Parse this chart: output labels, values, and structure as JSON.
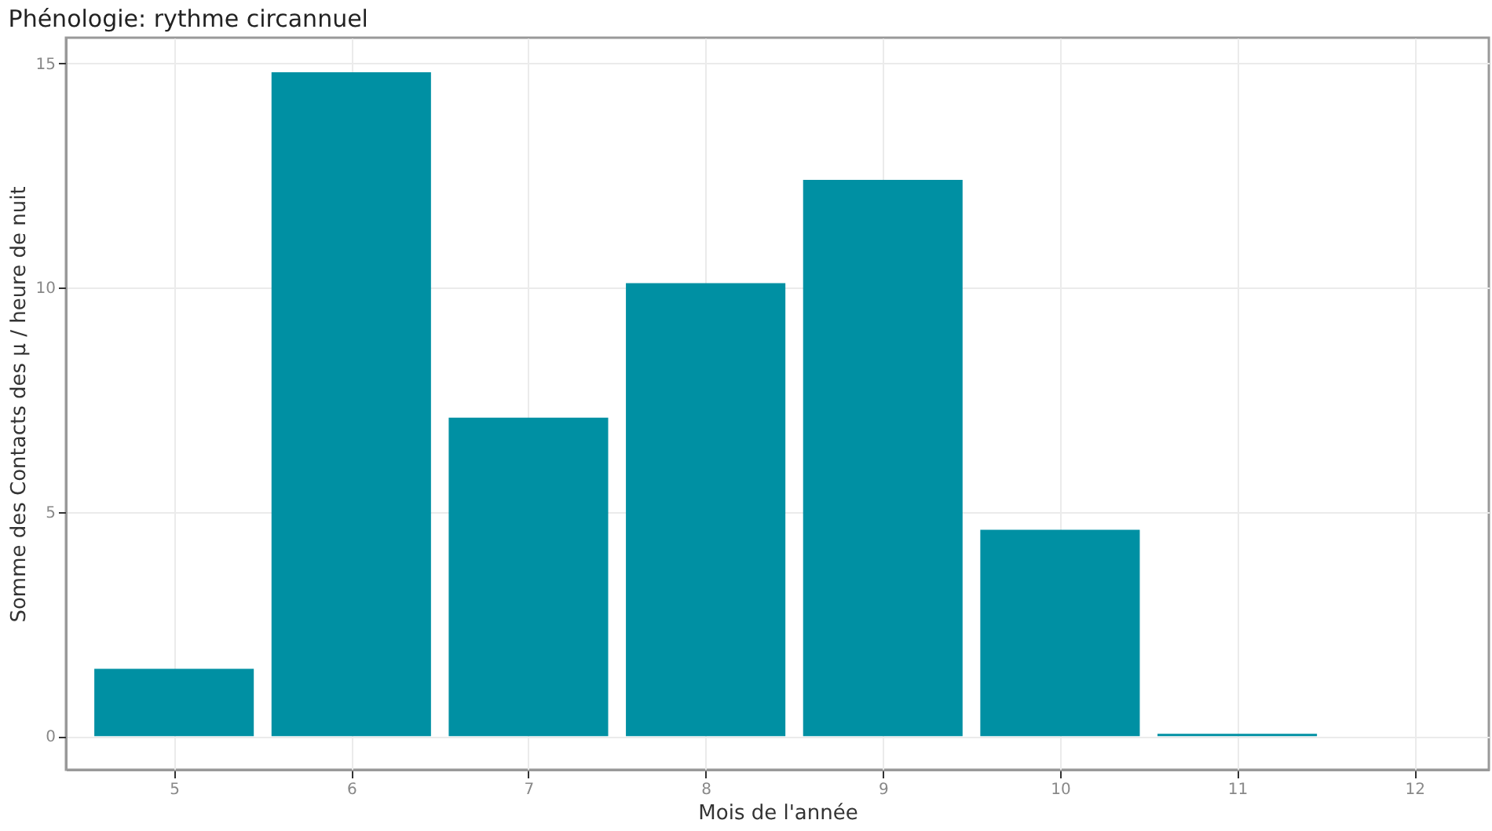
{
  "chart_data": {
    "type": "bar",
    "title": "Phénologie: rythme circannuel",
    "xlabel": "Mois de l'année",
    "ylabel": "Somme des Contacts des µ / heure de nuit",
    "x": [
      5,
      6,
      7,
      8,
      9,
      10,
      11
    ],
    "values": [
      1.5,
      14.8,
      7.1,
      10.1,
      12.4,
      4.6,
      0.05
    ],
    "color": "#0090a3",
    "xlim": [
      4.39,
      12.42
    ],
    "xticks": [
      5,
      6,
      7,
      8,
      9,
      10,
      11,
      12
    ],
    "ylim": [
      -0.75,
      15.57
    ],
    "yticks": [
      0,
      5,
      10,
      15
    ],
    "grid": true
  }
}
